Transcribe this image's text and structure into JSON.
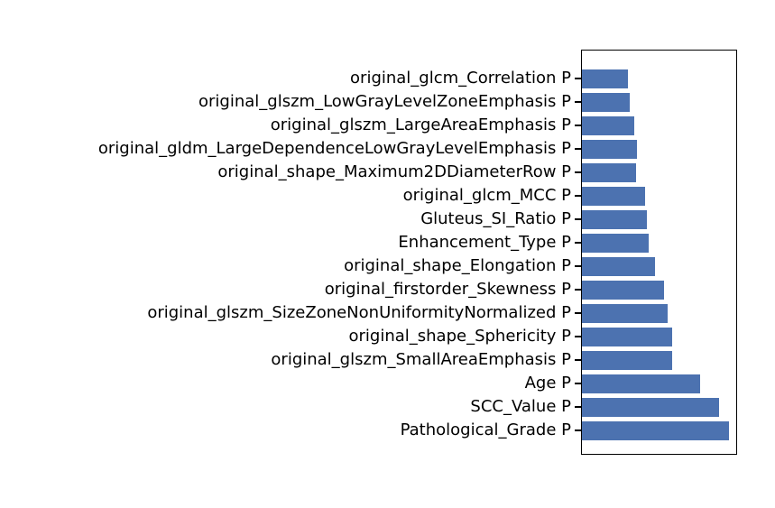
{
  "chart": {
    "background_color": "#ffffff",
    "bar_color": "#4c72b0",
    "frame_color": "#000000",
    "tick_color": "#000000",
    "label_color": "#000000"
  },
  "chart_data": {
    "type": "bar",
    "orientation": "horizontal",
    "title": "",
    "xlabel": "",
    "ylabel": "",
    "grid": false,
    "legend": null,
    "x_axis_tick_labels": "none",
    "xlim": [
      0,
      1
    ],
    "categories": [
      "original_glcm_Correlation P",
      "original_glszm_LowGrayLevelZoneEmphasis P",
      "original_glszm_LargeAreaEmphasis P",
      "original_gldm_LargeDependenceLowGrayLevelEmphasis P",
      "original_shape_Maximum2DDiameterRow P",
      "original_glcm_MCC P",
      "Gluteus_SI_Ratio P",
      "Enhancement_Type P",
      "original_shape_Elongation P",
      "original_firstorder_Skewness P",
      "original_glszm_SizeZoneNonUniformityNormalized P",
      "original_shape_Sphericity P",
      "original_glszm_SmallAreaEmphasis P",
      "Age P",
      "SCC_Value P",
      "Pathological_Grade P"
    ],
    "values": [
      0.301,
      0.312,
      0.341,
      0.358,
      0.353,
      0.41,
      0.422,
      0.434,
      0.474,
      0.532,
      0.555,
      0.584,
      0.584,
      0.763,
      0.884,
      0.948
    ],
    "value_note": "relative bar lengths as fraction of plot width; no numeric x-axis scale is shown in the figure"
  }
}
